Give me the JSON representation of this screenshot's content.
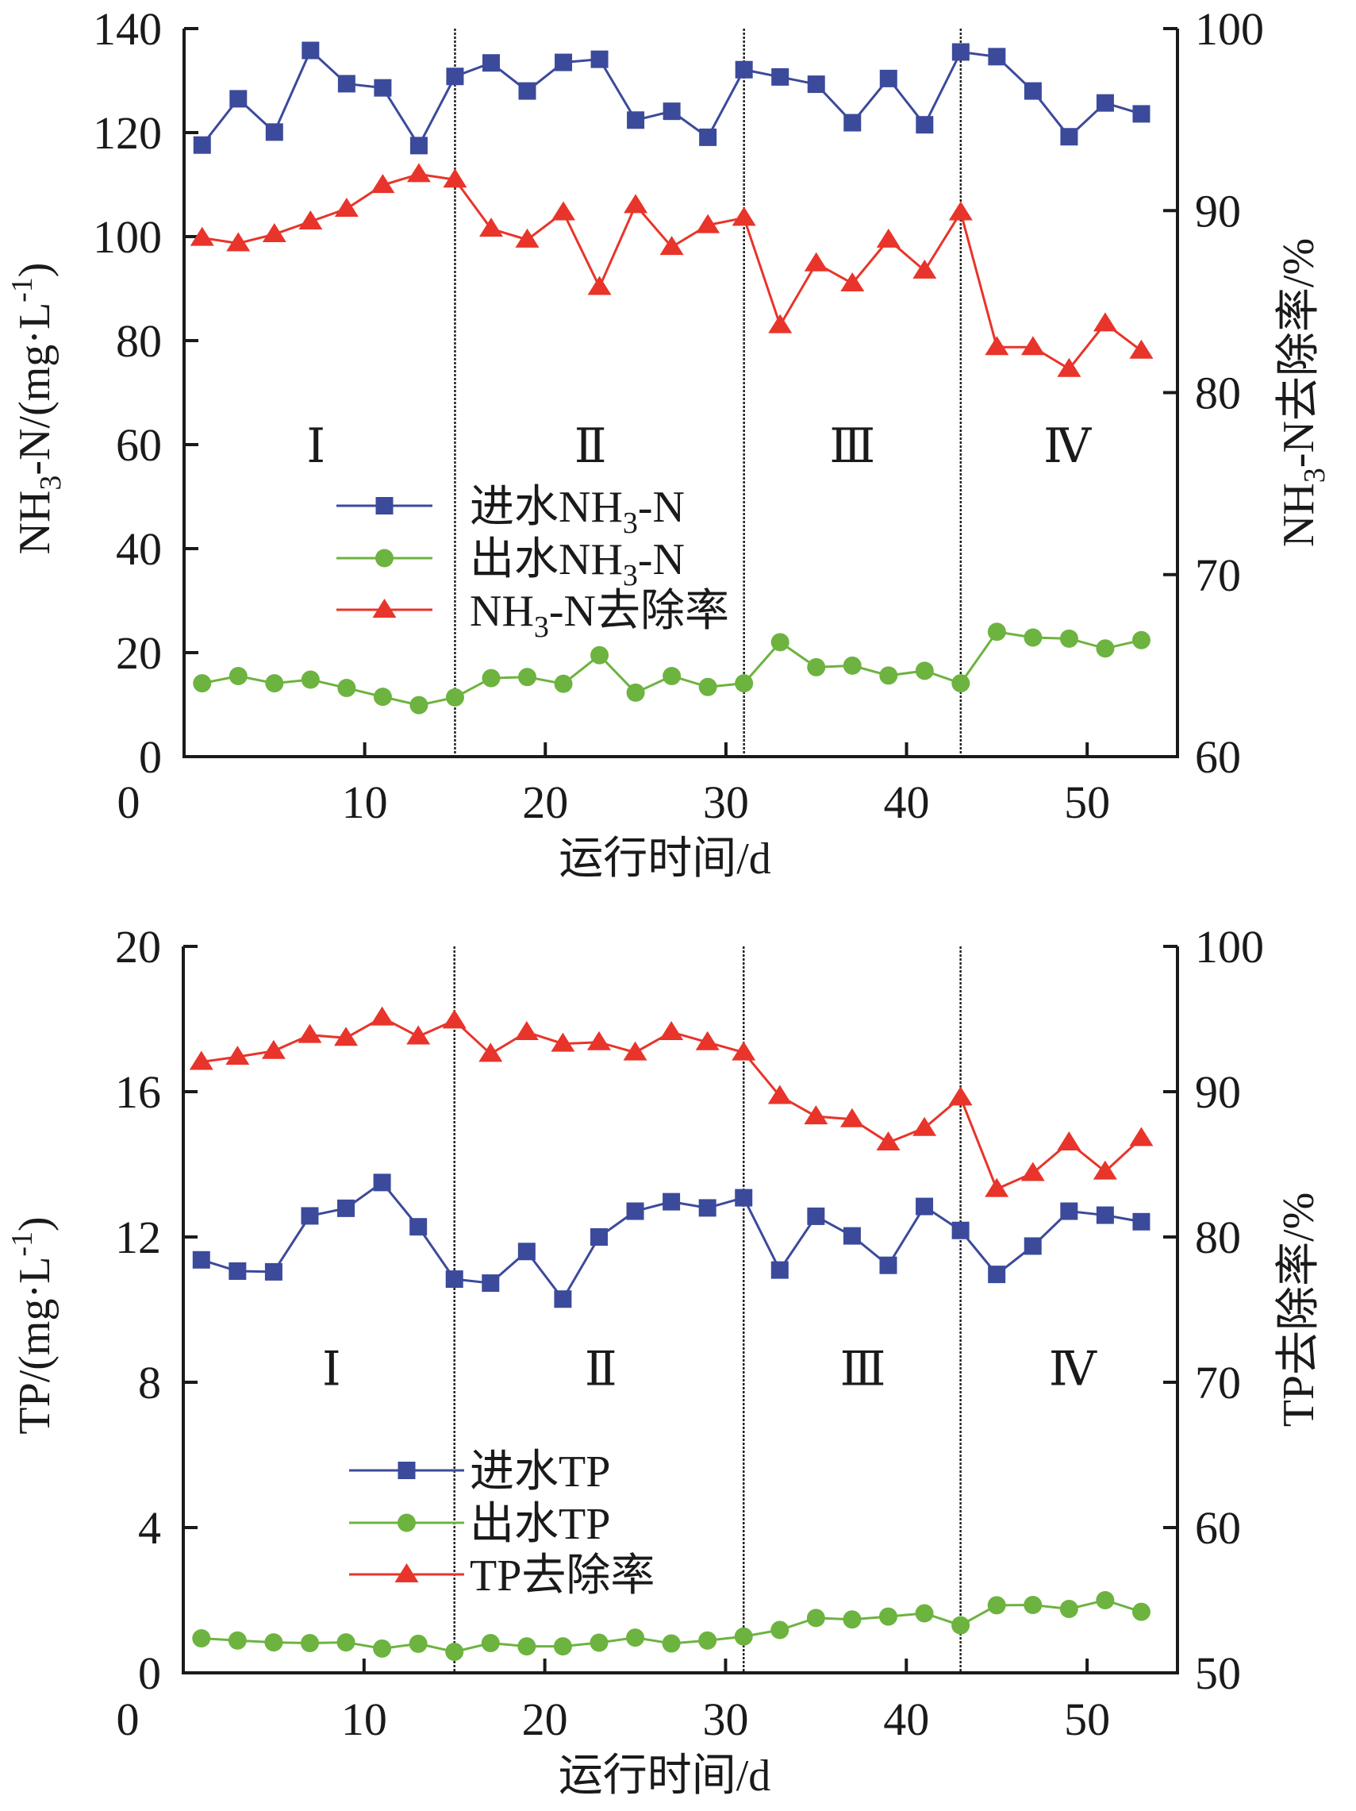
{
  "chart_data": [
    {
      "type": "line",
      "title": "",
      "xlabel": "运行时间/d",
      "ylabel": "NH3-N/(mg·L-1)",
      "ylabel_parts": {
        "base": "NH",
        "sub": "3",
        "rest": "-N/(mg·L",
        "sup": "-1",
        "close": ")"
      },
      "y2label": "NH3-N去除率/%",
      "y2label_parts": {
        "base": "NH",
        "sub": "3",
        "rest": "-N去除率/%"
      },
      "xlim": [
        0,
        55
      ],
      "ylim": [
        0,
        140
      ],
      "y2lim": [
        60,
        100
      ],
      "xticks": [
        0,
        10,
        20,
        30,
        40,
        50
      ],
      "yticks": [
        0,
        20,
        40,
        60,
        80,
        100,
        120,
        140
      ],
      "y2ticks": [
        60,
        70,
        80,
        90,
        100
      ],
      "grid": false,
      "legend_position": "center-left",
      "phase_boundaries": [
        15,
        31,
        43
      ],
      "phase_labels": [
        {
          "label": "Ⅰ",
          "x": 7.3
        },
        {
          "label": "Ⅱ",
          "x": 22.5
        },
        {
          "label": "Ⅲ",
          "x": 37.0
        },
        {
          "label": "Ⅳ",
          "x": 48.9
        }
      ],
      "phase_label_y": 60,
      "x": [
        1,
        3,
        5,
        7,
        9,
        11,
        13,
        15,
        17,
        19,
        21,
        23,
        25,
        27,
        29,
        31,
        33,
        35,
        37,
        39,
        41,
        43,
        45,
        47,
        49,
        51,
        53
      ],
      "series": [
        {
          "name": "进水NH3-N",
          "legend_parts": {
            "pre": "进水NH",
            "sub": "3",
            "post": "-N"
          },
          "axis": "left",
          "marker": "square",
          "color": "#3b4a9b",
          "values": [
            117.6,
            126.5,
            120.1,
            135.8,
            129.4,
            128.6,
            117.5,
            130.8,
            133.4,
            128.0,
            133.5,
            134.1,
            122.4,
            124.1,
            119.1,
            132.1,
            130.7,
            129.3,
            121.9,
            130.4,
            121.5,
            135.5,
            134.6,
            128.0,
            119.2,
            125.7,
            123.6
          ]
        },
        {
          "name": "出水NH3-N",
          "legend_parts": {
            "pre": "出水NH",
            "sub": "3",
            "post": "-N"
          },
          "axis": "left",
          "marker": "circle",
          "color": "#6db33f",
          "values": [
            14.1,
            15.5,
            14.1,
            14.8,
            13.2,
            11.5,
            9.9,
            11.4,
            15.1,
            15.3,
            14.0,
            19.5,
            12.3,
            15.5,
            13.4,
            14.1,
            22.0,
            17.2,
            17.5,
            15.6,
            16.5,
            14.1,
            24.0,
            22.9,
            22.7,
            20.8,
            22.4
          ]
        },
        {
          "name": "NH3-N去除率",
          "legend_parts": {
            "pre": "NH",
            "sub": "3",
            "post": "-N去除率"
          },
          "axis": "right",
          "marker": "triangle",
          "color": "#e8342a",
          "values": [
            88.5,
            88.2,
            88.7,
            89.4,
            90.1,
            91.4,
            92.0,
            91.7,
            89.0,
            88.4,
            89.9,
            85.8,
            90.3,
            88.0,
            89.2,
            89.6,
            83.7,
            87.1,
            86.0,
            88.4,
            86.7,
            89.9,
            82.5,
            82.5,
            81.3,
            83.8,
            82.3
          ]
        }
      ]
    },
    {
      "type": "line",
      "title": "",
      "xlabel": "运行时间/d",
      "ylabel": "TP/(mg·L-1)",
      "ylabel_parts": {
        "base": "TP/(mg·L",
        "sup": "-1",
        "close": ")"
      },
      "y2label": "TP去除率/%",
      "xlim": [
        0,
        55
      ],
      "ylim": [
        0,
        20
      ],
      "y2lim": [
        50,
        100
      ],
      "xticks": [
        0,
        10,
        20,
        30,
        40,
        50
      ],
      "yticks": [
        0,
        4,
        8,
        12,
        16,
        20
      ],
      "y2ticks": [
        50,
        60,
        70,
        80,
        90,
        100
      ],
      "grid": false,
      "legend_position": "bottom-left",
      "phase_boundaries": [
        15,
        31,
        43
      ],
      "phase_labels": [
        {
          "label": "Ⅰ",
          "x": 8.2
        },
        {
          "label": "Ⅱ",
          "x": 23.1
        },
        {
          "label": "Ⅲ",
          "x": 37.6
        },
        {
          "label": "Ⅳ",
          "x": 49.2
        }
      ],
      "phase_label_y": 8.4,
      "x": [
        1,
        3,
        5,
        7,
        9,
        11,
        13,
        15,
        17,
        19,
        21,
        23,
        25,
        27,
        29,
        31,
        33,
        35,
        37,
        39,
        41,
        43,
        45,
        47,
        49,
        51,
        53
      ],
      "series": [
        {
          "name": "进水TP",
          "legend_parts": {
            "pre": "进水TP",
            "sub": "",
            "post": ""
          },
          "axis": "left",
          "marker": "square",
          "color": "#3b4a9b",
          "values": [
            11.37,
            11.06,
            11.04,
            12.58,
            12.79,
            13.5,
            12.28,
            10.84,
            10.73,
            11.6,
            10.29,
            12.0,
            12.71,
            12.97,
            12.8,
            13.08,
            11.09,
            12.57,
            12.03,
            11.22,
            12.84,
            12.18,
            10.97,
            11.75,
            12.71,
            12.6,
            12.42
          ]
        },
        {
          "name": "出水TP",
          "legend_parts": {
            "pre": "出水TP",
            "sub": "",
            "post": ""
          },
          "axis": "left",
          "marker": "circle",
          "color": "#6db33f",
          "values": [
            0.95,
            0.89,
            0.84,
            0.82,
            0.84,
            0.67,
            0.8,
            0.58,
            0.82,
            0.73,
            0.73,
            0.83,
            0.97,
            0.81,
            0.89,
            1.0,
            1.18,
            1.51,
            1.47,
            1.55,
            1.64,
            1.31,
            1.86,
            1.87,
            1.76,
            2.0,
            1.68
          ]
        },
        {
          "name": "TP去除率",
          "legend_parts": {
            "pre": "TP去除率",
            "sub": "",
            "post": ""
          },
          "axis": "right",
          "marker": "triangle",
          "color": "#e8342a",
          "values": [
            92.05,
            92.4,
            92.8,
            93.9,
            93.7,
            95.1,
            93.8,
            94.9,
            92.6,
            94.1,
            93.3,
            93.4,
            92.7,
            94.1,
            93.4,
            92.7,
            89.7,
            88.3,
            88.1,
            86.5,
            87.5,
            89.6,
            83.3,
            84.4,
            86.5,
            84.5,
            86.8
          ]
        }
      ]
    }
  ]
}
